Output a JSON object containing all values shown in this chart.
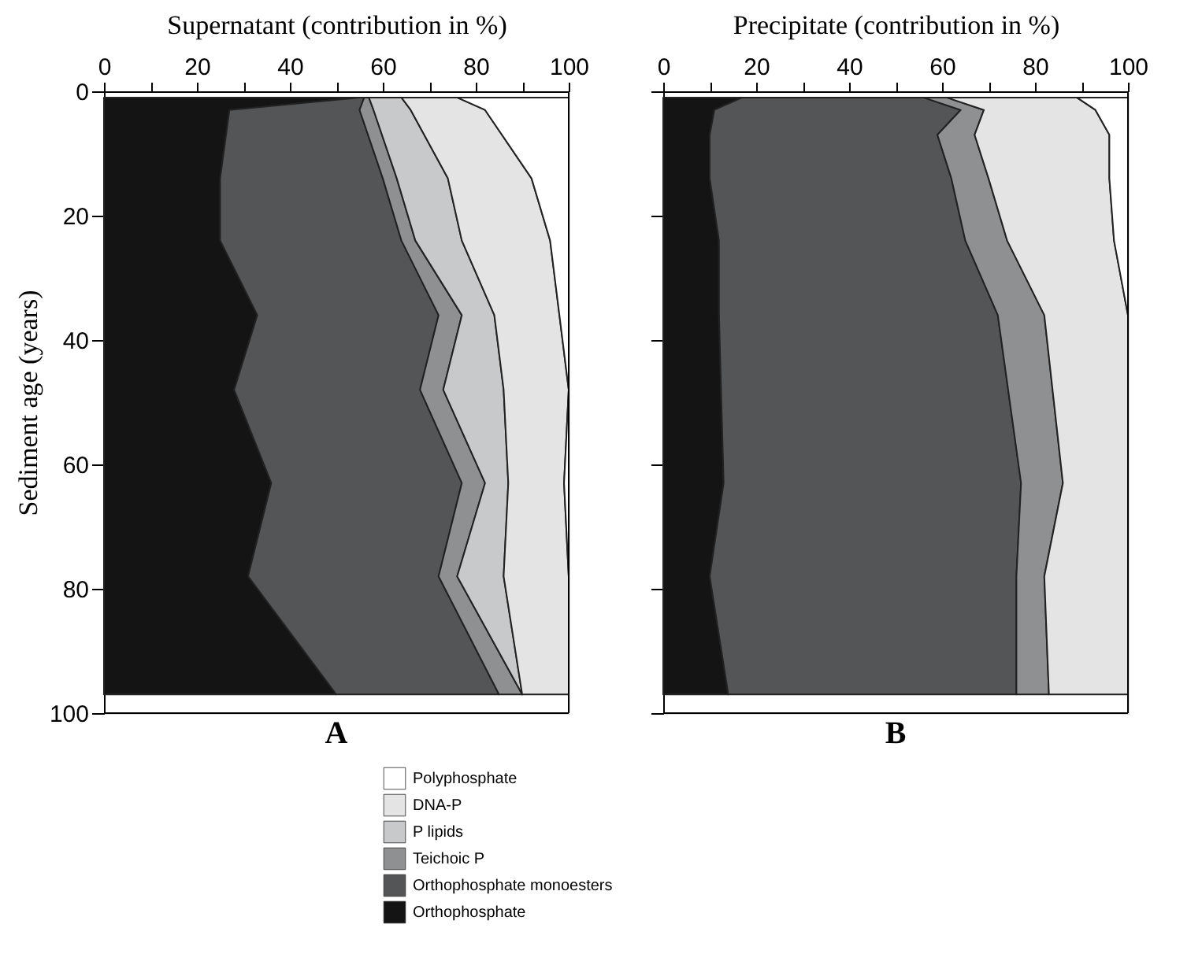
{
  "chart_data": [
    {
      "type": "area",
      "stacked": true,
      "orientation": "horizontal",
      "xlabel": "Supernatant (contribution in %)",
      "ylabel": "Sediment age (years)",
      "x": [
        1,
        3,
        14,
        24,
        36,
        48,
        63,
        78,
        97
      ],
      "xlim": [
        0,
        100
      ],
      "xticks": [
        0,
        {
          "value": 10,
          "label": null
        },
        20,
        {
          "value": 30,
          "label": null
        },
        40,
        {
          "value": 50,
          "label": null
        },
        60,
        {
          "value": 70,
          "label": null
        },
        80,
        {
          "value": 90,
          "label": null
        },
        100
      ],
      "ylim": [
        100,
        0
      ],
      "yticks": [
        0,
        20,
        40,
        60,
        80,
        100
      ],
      "grid": false,
      "legend": "bottom",
      "annotations": [
        "A"
      ],
      "series": [
        {
          "name": "Orthophosphate",
          "color": "#141414",
          "values": [
            55,
            27,
            25,
            25,
            33,
            28,
            36,
            31,
            50
          ]
        },
        {
          "name": "Orthophosphate monoesters",
          "color": "#545557",
          "values": [
            1,
            28,
            35,
            39,
            39,
            40,
            41,
            41,
            35
          ]
        },
        {
          "name": "Teichoic P",
          "color": "#8f9092",
          "values": [
            1,
            3,
            3,
            3,
            5,
            5,
            5,
            4,
            5
          ]
        },
        {
          "name": "P lipids",
          "color": "#c8c9cb",
          "values": [
            7,
            8,
            11,
            10,
            7,
            13,
            5,
            10,
            0
          ]
        },
        {
          "name": "DNA-P",
          "color": "#e4e4e4",
          "values": [
            12,
            16,
            18,
            19,
            14,
            14,
            12,
            14,
            10
          ]
        },
        {
          "name": "Polyphosphate",
          "color": "#ffffff",
          "values": [
            24,
            18,
            8,
            4,
            2,
            0,
            1,
            0,
            0
          ]
        }
      ]
    },
    {
      "type": "area",
      "stacked": true,
      "orientation": "horizontal",
      "xlabel": "Precipitate (contribution in %)",
      "x": [
        1,
        3,
        7,
        14,
        24,
        36,
        63,
        78,
        97
      ],
      "xlim": [
        0,
        100
      ],
      "xticks": [
        0,
        {
          "value": 10,
          "label": null
        },
        20,
        {
          "value": 30,
          "label": null
        },
        40,
        {
          "value": 50,
          "label": null
        },
        60,
        {
          "value": 70,
          "label": null
        },
        80,
        {
          "value": 90,
          "label": null
        },
        100
      ],
      "ylim": [
        100,
        0
      ],
      "yticks": [
        0,
        20,
        40,
        60,
        80,
        100
      ],
      "tick_labels": "x",
      "grid": false,
      "annotations": [
        "B"
      ],
      "series": [
        {
          "color": "#141414",
          "values": [
            17,
            11,
            10,
            10,
            12,
            12,
            13,
            10,
            14
          ]
        },
        {
          "color": "#545557",
          "values": [
            39,
            53,
            49,
            52,
            53,
            60,
            64,
            66,
            62
          ]
        },
        {
          "color": "#8f9092",
          "values": [
            5,
            5,
            8,
            8,
            9,
            10,
            9,
            6,
            7
          ]
        },
        {
          "color": "#e4e4e4",
          "values": [
            28,
            24,
            29,
            26,
            23,
            18,
            14,
            18,
            17
          ]
        },
        {
          "color": "#ffffff",
          "values": [
            11,
            7,
            4,
            4,
            3,
            0,
            0,
            0,
            0
          ]
        }
      ]
    }
  ]
}
